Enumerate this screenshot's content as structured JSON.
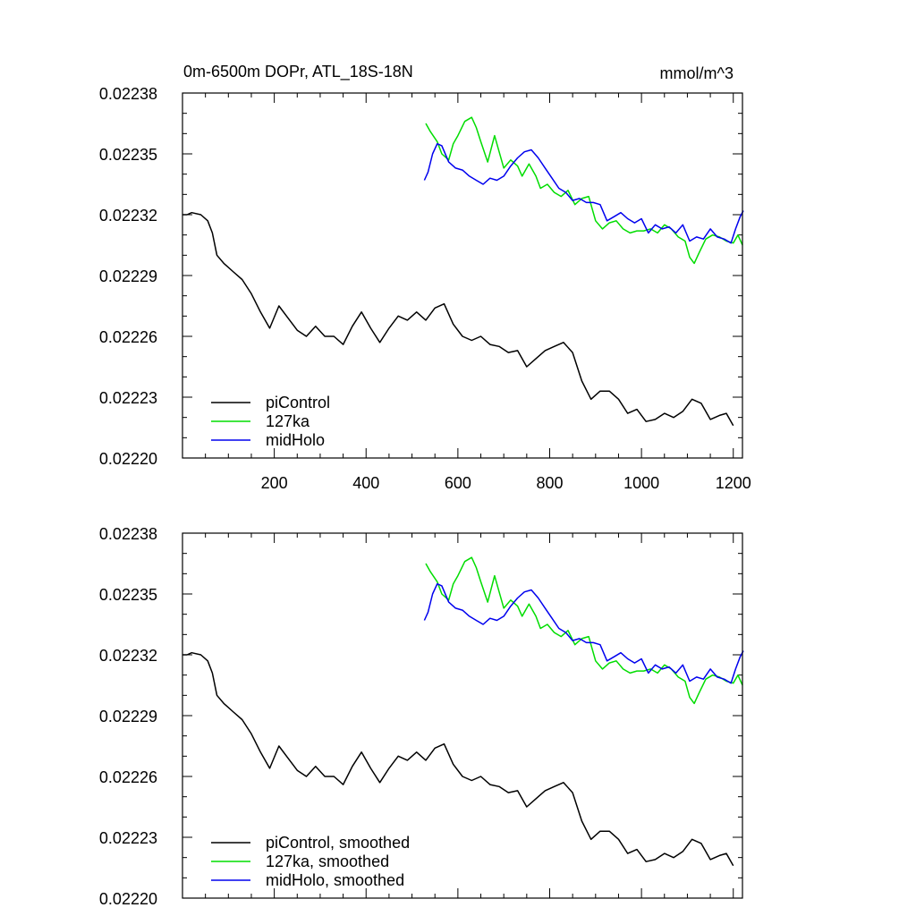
{
  "figure": {
    "title_left": "0m-6500m DOPr, ATL_18S-18N",
    "title_right": "mmol/m^3"
  },
  "chart_data": [
    {
      "type": "line",
      "panel": "top",
      "xlim": [
        0,
        1220
      ],
      "ylim": [
        0.0222,
        0.02238
      ],
      "yticks": [
        "0.02238",
        "0.02235",
        "0.02232",
        "0.02229",
        "0.02226",
        "0.02223",
        "0.02220"
      ],
      "xticks": [
        "200",
        "400",
        "600",
        "800",
        "1000",
        "1200"
      ],
      "legend_position": "bottom-left",
      "series": [
        {
          "name": "piControl",
          "color": "#000000",
          "x": [
            0,
            10,
            20,
            40,
            55,
            65,
            75,
            90,
            110,
            130,
            150,
            170,
            190,
            210,
            230,
            250,
            270,
            290,
            310,
            330,
            350,
            370,
            390,
            410,
            430,
            450,
            470,
            490,
            510,
            530,
            550,
            570,
            590,
            610,
            630,
            650,
            670,
            690,
            710,
            730,
            750,
            770,
            790,
            810,
            830,
            850,
            870,
            890,
            910,
            930,
            950,
            970,
            990,
            1010,
            1030,
            1050,
            1070,
            1090,
            1110,
            1130,
            1150,
            1170,
            1185,
            1200
          ],
          "values": [
            0.02232,
            0.02232,
            0.022321,
            0.02232,
            0.022317,
            0.022311,
            0.0223,
            0.022296,
            0.022292,
            0.022288,
            0.022281,
            0.022272,
            0.022264,
            0.022275,
            0.022269,
            0.022263,
            0.02226,
            0.022265,
            0.02226,
            0.02226,
            0.022256,
            0.022265,
            0.022272,
            0.022264,
            0.022257,
            0.022264,
            0.02227,
            0.022268,
            0.022272,
            0.022268,
            0.022274,
            0.022276,
            0.022266,
            0.02226,
            0.022258,
            0.02226,
            0.022256,
            0.022255,
            0.022252,
            0.022253,
            0.022245,
            0.022249,
            0.022253,
            0.022255,
            0.022257,
            0.022252,
            0.022238,
            0.022229,
            0.022233,
            0.022233,
            0.022229,
            0.022222,
            0.022224,
            0.022218,
            0.022219,
            0.022222,
            0.02222,
            0.022223,
            0.022229,
            0.022227,
            0.022219,
            0.022221,
            0.022222,
            0.022216
          ]
        },
        {
          "name": "127ka",
          "color": "#00dd00",
          "x": [
            530,
            540,
            555,
            565,
            580,
            590,
            600,
            615,
            630,
            640,
            650,
            665,
            680,
            690,
            700,
            715,
            730,
            740,
            755,
            770,
            780,
            795,
            810,
            825,
            840,
            855,
            870,
            885,
            900,
            915,
            930,
            945,
            960,
            975,
            990,
            1005,
            1020,
            1035,
            1050,
            1065,
            1080,
            1095,
            1105,
            1115,
            1125,
            1140,
            1155,
            1170,
            1185,
            1200,
            1210,
            1220
          ],
          "values": [
            0.022365,
            0.022361,
            0.022356,
            0.02235,
            0.022347,
            0.022355,
            0.022359,
            0.022366,
            0.022368,
            0.022363,
            0.022356,
            0.022346,
            0.022359,
            0.022351,
            0.022343,
            0.022347,
            0.022344,
            0.022339,
            0.022345,
            0.022339,
            0.022333,
            0.022335,
            0.022331,
            0.022329,
            0.022332,
            0.022325,
            0.022328,
            0.022329,
            0.022317,
            0.022313,
            0.022316,
            0.022317,
            0.022313,
            0.022311,
            0.022312,
            0.022312,
            0.022313,
            0.022311,
            0.022315,
            0.022313,
            0.022309,
            0.022307,
            0.022299,
            0.022296,
            0.022301,
            0.022308,
            0.02231,
            0.022309,
            0.022307,
            0.022306,
            0.02231,
            0.022305
          ]
        },
        {
          "name": "midHolo",
          "color": "#0000ee",
          "x": [
            527,
            535,
            545,
            555,
            565,
            580,
            595,
            610,
            625,
            640,
            655,
            670,
            685,
            700,
            715,
            730,
            745,
            760,
            775,
            790,
            805,
            820,
            835,
            850,
            865,
            880,
            895,
            910,
            925,
            940,
            955,
            970,
            985,
            1000,
            1015,
            1030,
            1045,
            1060,
            1075,
            1090,
            1105,
            1120,
            1135,
            1150,
            1165,
            1180,
            1195,
            1205,
            1215,
            1222
          ],
          "values": [
            0.022337,
            0.022341,
            0.02235,
            0.022355,
            0.022354,
            0.022346,
            0.022343,
            0.022342,
            0.022339,
            0.022337,
            0.022335,
            0.022338,
            0.022337,
            0.022339,
            0.022344,
            0.022348,
            0.022351,
            0.022352,
            0.022348,
            0.022343,
            0.022338,
            0.022333,
            0.022331,
            0.022327,
            0.022328,
            0.022326,
            0.022326,
            0.022325,
            0.022317,
            0.022319,
            0.022321,
            0.022318,
            0.022316,
            0.022318,
            0.022311,
            0.022315,
            0.022313,
            0.022314,
            0.022311,
            0.022315,
            0.022307,
            0.022309,
            0.022308,
            0.022313,
            0.022309,
            0.022308,
            0.022306,
            0.022313,
            0.022319,
            0.022322
          ]
        }
      ]
    },
    {
      "type": "line",
      "panel": "bottom",
      "xlim": [
        0,
        1220
      ],
      "ylim": [
        0.0222,
        0.02238
      ],
      "yticks": [
        "0.02238",
        "0.02235",
        "0.02232",
        "0.02229",
        "0.02226",
        "0.02223",
        "0.02220"
      ],
      "legend_position": "bottom-left",
      "series": [
        {
          "name": "piControl, smoothed",
          "color": "#000000",
          "x": [
            0,
            10,
            20,
            40,
            55,
            65,
            75,
            90,
            110,
            130,
            150,
            170,
            190,
            210,
            230,
            250,
            270,
            290,
            310,
            330,
            350,
            370,
            390,
            410,
            430,
            450,
            470,
            490,
            510,
            530,
            550,
            570,
            590,
            610,
            630,
            650,
            670,
            690,
            710,
            730,
            750,
            770,
            790,
            810,
            830,
            850,
            870,
            890,
            910,
            930,
            950,
            970,
            990,
            1010,
            1030,
            1050,
            1070,
            1090,
            1110,
            1130,
            1150,
            1170,
            1185,
            1200
          ],
          "values": [
            0.02232,
            0.02232,
            0.022321,
            0.02232,
            0.022317,
            0.022311,
            0.0223,
            0.022296,
            0.022292,
            0.022288,
            0.022281,
            0.022272,
            0.022264,
            0.022275,
            0.022269,
            0.022263,
            0.02226,
            0.022265,
            0.02226,
            0.02226,
            0.022256,
            0.022265,
            0.022272,
            0.022264,
            0.022257,
            0.022264,
            0.02227,
            0.022268,
            0.022272,
            0.022268,
            0.022274,
            0.022276,
            0.022266,
            0.02226,
            0.022258,
            0.02226,
            0.022256,
            0.022255,
            0.022252,
            0.022253,
            0.022245,
            0.022249,
            0.022253,
            0.022255,
            0.022257,
            0.022252,
            0.022238,
            0.022229,
            0.022233,
            0.022233,
            0.022229,
            0.022222,
            0.022224,
            0.022218,
            0.022219,
            0.022222,
            0.02222,
            0.022223,
            0.022229,
            0.022227,
            0.022219,
            0.022221,
            0.022222,
            0.022216
          ]
        },
        {
          "name": "127ka, smoothed",
          "color": "#00dd00",
          "x": [
            530,
            540,
            555,
            565,
            580,
            590,
            600,
            615,
            630,
            640,
            650,
            665,
            680,
            690,
            700,
            715,
            730,
            740,
            755,
            770,
            780,
            795,
            810,
            825,
            840,
            855,
            870,
            885,
            900,
            915,
            930,
            945,
            960,
            975,
            990,
            1005,
            1020,
            1035,
            1050,
            1065,
            1080,
            1095,
            1105,
            1115,
            1125,
            1140,
            1155,
            1170,
            1185,
            1200,
            1210,
            1220
          ],
          "values": [
            0.022365,
            0.022361,
            0.022356,
            0.02235,
            0.022347,
            0.022355,
            0.022359,
            0.022366,
            0.022368,
            0.022363,
            0.022356,
            0.022346,
            0.022359,
            0.022351,
            0.022343,
            0.022347,
            0.022344,
            0.022339,
            0.022345,
            0.022339,
            0.022333,
            0.022335,
            0.022331,
            0.022329,
            0.022332,
            0.022325,
            0.022328,
            0.022329,
            0.022317,
            0.022313,
            0.022316,
            0.022317,
            0.022313,
            0.022311,
            0.022312,
            0.022312,
            0.022313,
            0.022311,
            0.022315,
            0.022313,
            0.022309,
            0.022307,
            0.022299,
            0.022296,
            0.022301,
            0.022308,
            0.02231,
            0.022309,
            0.022307,
            0.022306,
            0.02231,
            0.022305
          ]
        },
        {
          "name": "midHolo, smoothed",
          "color": "#0000ee",
          "x": [
            527,
            535,
            545,
            555,
            565,
            580,
            595,
            610,
            625,
            640,
            655,
            670,
            685,
            700,
            715,
            730,
            745,
            760,
            775,
            790,
            805,
            820,
            835,
            850,
            865,
            880,
            895,
            910,
            925,
            940,
            955,
            970,
            985,
            1000,
            1015,
            1030,
            1045,
            1060,
            1075,
            1090,
            1105,
            1120,
            1135,
            1150,
            1165,
            1180,
            1195,
            1205,
            1215,
            1222
          ],
          "values": [
            0.022337,
            0.022341,
            0.02235,
            0.022355,
            0.022354,
            0.022346,
            0.022343,
            0.022342,
            0.022339,
            0.022337,
            0.022335,
            0.022338,
            0.022337,
            0.022339,
            0.022344,
            0.022348,
            0.022351,
            0.022352,
            0.022348,
            0.022343,
            0.022338,
            0.022333,
            0.022331,
            0.022327,
            0.022328,
            0.022326,
            0.022326,
            0.022325,
            0.022317,
            0.022319,
            0.022321,
            0.022318,
            0.022316,
            0.022318,
            0.022311,
            0.022315,
            0.022313,
            0.022314,
            0.022311,
            0.022315,
            0.022307,
            0.022309,
            0.022308,
            0.022313,
            0.022309,
            0.022308,
            0.022306,
            0.022313,
            0.022319,
            0.022322
          ]
        }
      ]
    }
  ]
}
